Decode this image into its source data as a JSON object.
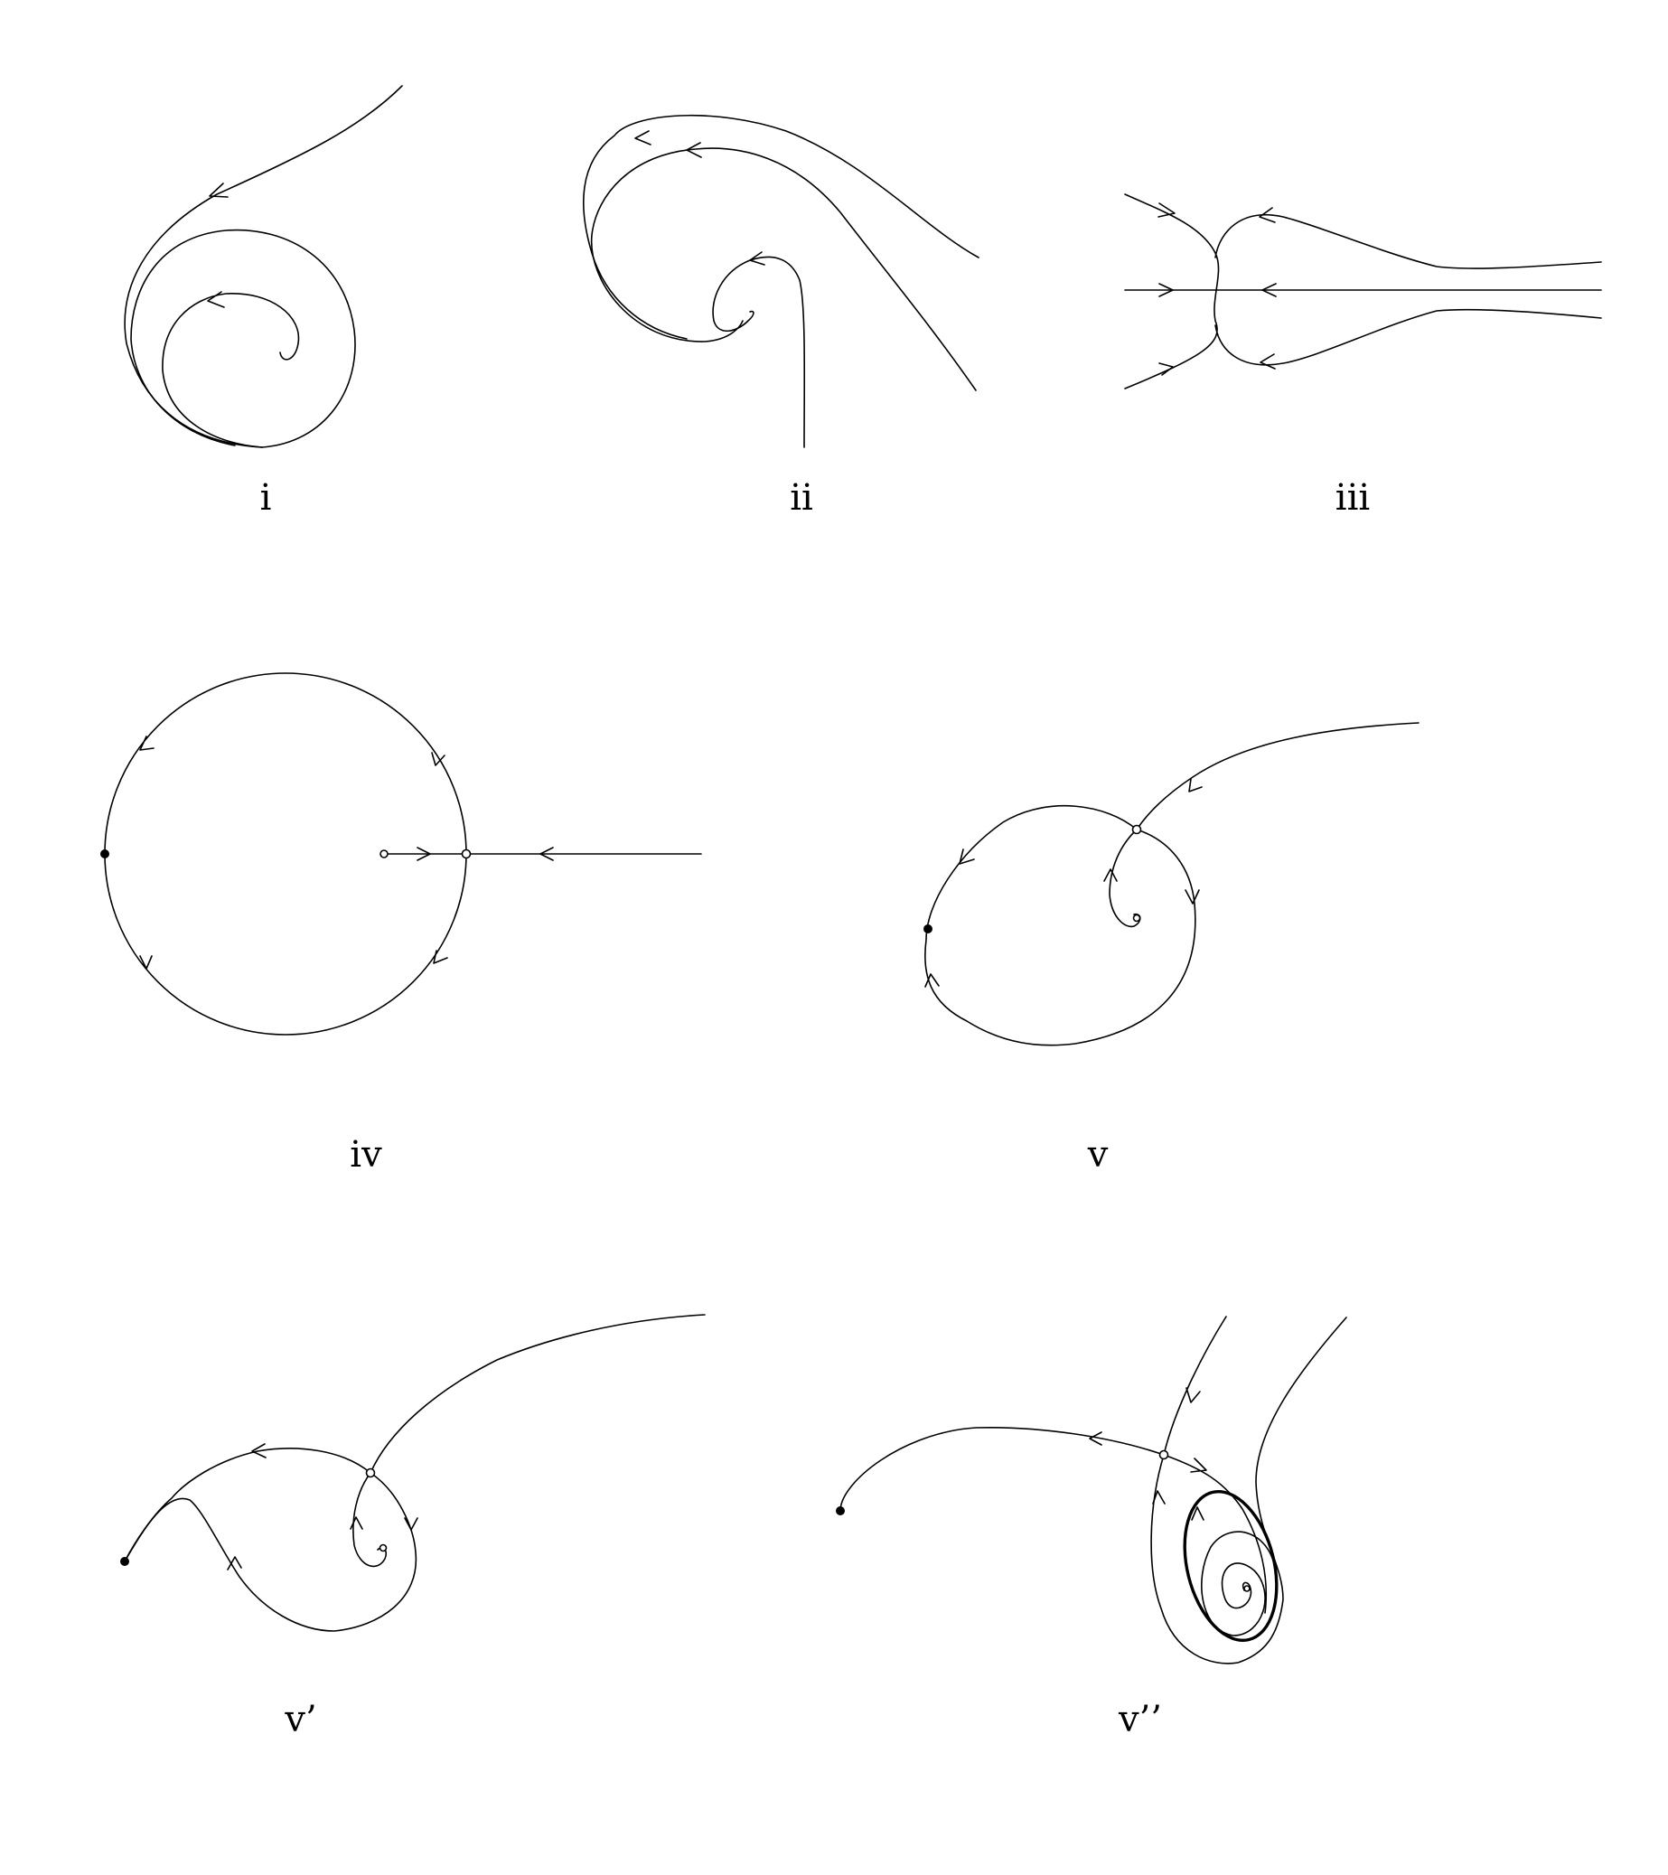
{
  "panels": [
    {
      "id": "i",
      "label": "i"
    },
    {
      "id": "ii",
      "label": "ii"
    },
    {
      "id": "iii",
      "label": "iii"
    },
    {
      "id": "iv",
      "label": "iv"
    },
    {
      "id": "v",
      "label": "v"
    },
    {
      "id": "v1",
      "label": "v’"
    },
    {
      "id": "v2",
      "label": "v’’"
    }
  ],
  "colors": {
    "stroke": "#000000",
    "background": "#ffffff"
  }
}
